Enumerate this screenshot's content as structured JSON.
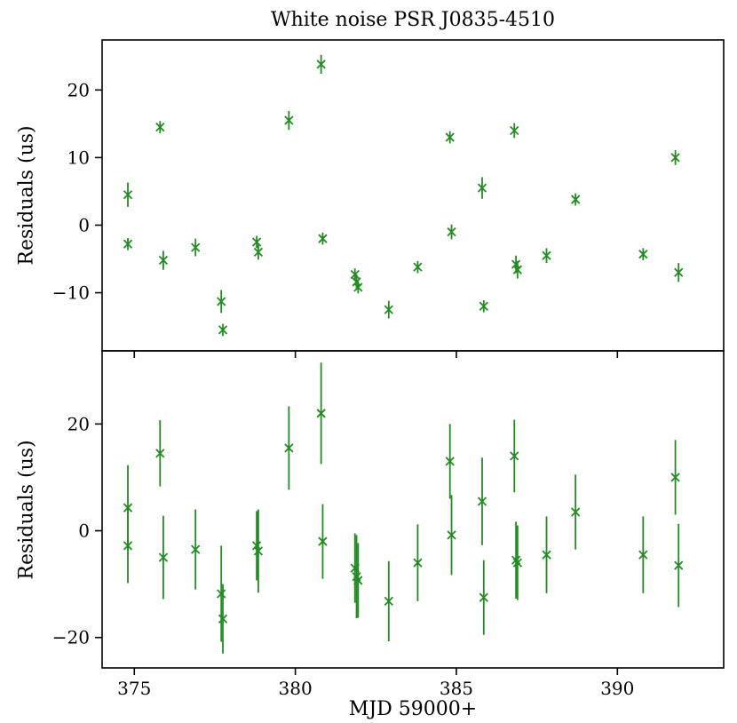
{
  "title": "White noise PSR J0835-4510",
  "xlabel": "MJD 59000+",
  "marker_color": "#228B22",
  "axis_color": "#000000",
  "chart_data": [
    {
      "type": "scatter",
      "name": "top-panel",
      "title": "White noise PSR J0835-4510",
      "ylabel": "Residuals (us)",
      "xlabel": "MJD 59000+",
      "marker": "x",
      "color": "#228B22",
      "error_bars": true,
      "grid": false,
      "xlim": [
        374.0,
        393.3
      ],
      "ylim": [
        -18.6,
        27.4
      ],
      "xticks": [
        375,
        380,
        385,
        390
      ],
      "yticks": [
        -10,
        0,
        10,
        20
      ],
      "show_xtick_labels": false,
      "points": [
        [
          374.8,
          4.5,
          1.8
        ],
        [
          374.8,
          -2.8,
          0.9
        ],
        [
          375.8,
          14.5,
          0.9
        ],
        [
          375.9,
          -5.2,
          1.4
        ],
        [
          376.9,
          -3.3,
          1.3
        ],
        [
          377.7,
          -11.3,
          1.7
        ],
        [
          377.75,
          -15.5,
          0.9
        ],
        [
          378.8,
          -2.5,
          0.9
        ],
        [
          378.85,
          -4.0,
          1.1
        ],
        [
          379.8,
          15.5,
          1.4
        ],
        [
          380.8,
          23.8,
          1.4
        ],
        [
          380.85,
          -2.0,
          0.9
        ],
        [
          381.85,
          -7.3,
          0.9
        ],
        [
          381.9,
          -8.4,
          1.1
        ],
        [
          381.95,
          -9.2,
          0.9
        ],
        [
          382.9,
          -12.5,
          1.3
        ],
        [
          383.8,
          -6.2,
          0.9
        ],
        [
          384.8,
          13.0,
          0.9
        ],
        [
          384.85,
          -1.0,
          1.1
        ],
        [
          385.8,
          5.5,
          1.6
        ],
        [
          385.85,
          -12.0,
          0.9
        ],
        [
          386.8,
          14.0,
          1.1
        ],
        [
          386.85,
          -5.8,
          1.3
        ],
        [
          386.9,
          -6.6,
          1.3
        ],
        [
          387.8,
          -4.5,
          1.1
        ],
        [
          388.7,
          3.8,
          0.9
        ],
        [
          390.8,
          -4.3,
          0.9
        ],
        [
          391.8,
          10.0,
          1.1
        ],
        [
          391.9,
          -7.0,
          1.4
        ]
      ]
    },
    {
      "type": "scatter",
      "name": "bottom-panel",
      "title": "",
      "ylabel": "Residuals (us)",
      "xlabel": "MJD 59000+",
      "marker": "x",
      "color": "#228B22",
      "error_bars": true,
      "grid": false,
      "xlim": [
        374.0,
        393.3
      ],
      "ylim": [
        -25.7,
        33.7
      ],
      "xticks": [
        375,
        380,
        385,
        390
      ],
      "yticks": [
        -20,
        0,
        20
      ],
      "show_xtick_labels": true,
      "points": [
        [
          374.8,
          4.3,
          8.0
        ],
        [
          374.8,
          -2.8,
          7.0
        ],
        [
          375.8,
          14.5,
          6.2
        ],
        [
          375.9,
          -5.0,
          7.8
        ],
        [
          376.9,
          -3.5,
          7.5
        ],
        [
          377.7,
          -11.8,
          9.0
        ],
        [
          377.75,
          -16.5,
          6.5
        ],
        [
          378.8,
          -2.8,
          6.5
        ],
        [
          378.85,
          -3.8,
          7.8
        ],
        [
          379.8,
          15.5,
          7.8
        ],
        [
          380.8,
          22.0,
          9.5
        ],
        [
          380.85,
          -2.0,
          7.0
        ],
        [
          381.85,
          -7.0,
          6.5
        ],
        [
          381.9,
          -8.6,
          7.8
        ],
        [
          381.95,
          -9.3,
          7.0
        ],
        [
          382.9,
          -13.2,
          7.5
        ],
        [
          383.8,
          -6.0,
          7.2
        ],
        [
          384.8,
          13.0,
          7.0
        ],
        [
          384.85,
          -0.8,
          7.5
        ],
        [
          385.8,
          5.5,
          8.2
        ],
        [
          385.85,
          -12.5,
          7.0
        ],
        [
          386.8,
          14.0,
          6.8
        ],
        [
          386.85,
          -5.5,
          7.2
        ],
        [
          386.9,
          -6.0,
          7.0
        ],
        [
          387.8,
          -4.5,
          7.2
        ],
        [
          388.7,
          3.5,
          7.0
        ],
        [
          390.8,
          -4.5,
          7.2
        ],
        [
          391.8,
          10.0,
          7.0
        ],
        [
          391.9,
          -6.5,
          7.8
        ]
      ]
    }
  ]
}
